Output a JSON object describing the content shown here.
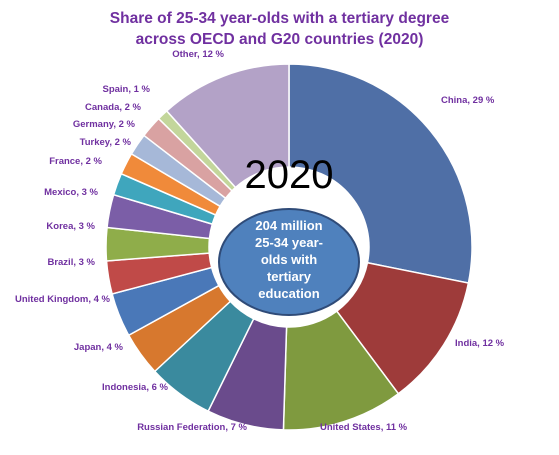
{
  "chart_data": {
    "type": "pie",
    "title_lines": [
      "Share of 25-34 year-olds with a tertiary degree",
      "across OECD and G20 countries (2020)"
    ],
    "categories": [
      "China",
      "India",
      "United States",
      "Russian Federation",
      "Indonesia",
      "Japan",
      "United Kingdom",
      "Brazil",
      "Korea",
      "Mexico",
      "France",
      "Turkey",
      "Germany",
      "Canada",
      "Spain",
      "Other"
    ],
    "values": [
      29,
      12,
      11,
      7,
      6,
      4,
      4,
      3,
      3,
      3,
      2,
      2,
      2,
      2,
      1,
      12
    ],
    "labels": [
      "China, 29 %",
      "India, 12 %",
      "United States, 11 %",
      "Russian Federation, 7 %",
      "Indonesia, 6 %",
      "Japan, 4 %",
      "United Kingdom, 4 %",
      "Brazil, 3 %",
      "Korea, 3 %",
      "Mexico, 3 %",
      "France, 2 %",
      "Turkey, 2 %",
      "Germany, 2 %",
      "Canada, 2 %",
      "Spain, 1 %",
      "Other, 12 %"
    ],
    "colors": [
      "#4f6fa6",
      "#9e3b3a",
      "#7f9a3f",
      "#6a4b8c",
      "#3a8a9e",
      "#d7782e",
      "#4a78b8",
      "#c04a48",
      "#8fad4a",
      "#7b5ea7",
      "#3fa6bd",
      "#f08a3a",
      "#a6b8d8",
      "#d9a2a2",
      "#c3d69b",
      "#b3a2c7"
    ],
    "center_year": "2020",
    "center_text_lines": [
      "204 million",
      "25-34 year-",
      "olds with",
      "tertiary",
      "education"
    ],
    "hole_color": "#ffffff",
    "center_bubble_color": "#4f81bd",
    "center_bubble_border": "#2f4b78",
    "label_color": "#7030a0"
  }
}
